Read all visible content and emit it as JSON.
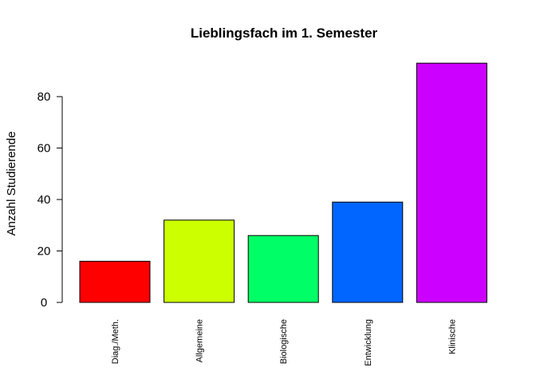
{
  "chart_data": {
    "type": "bar",
    "title": "Lieblingsfach im 1. Semester",
    "xlabel": "",
    "ylabel": "Anzahl Studierende",
    "categories": [
      "Diag./Meth.",
      "Allgemeine",
      "Biologische",
      "Entwicklung",
      "Klinische"
    ],
    "values": [
      16,
      32,
      26,
      39,
      93
    ],
    "colors": [
      "#FF0000",
      "#CCFF00",
      "#00FF66",
      "#0066FF",
      "#CC00FF"
    ],
    "yticks": [
      0,
      20,
      40,
      60,
      80
    ],
    "ylim": [
      0,
      93
    ],
    "grid": false,
    "legend": "none"
  }
}
